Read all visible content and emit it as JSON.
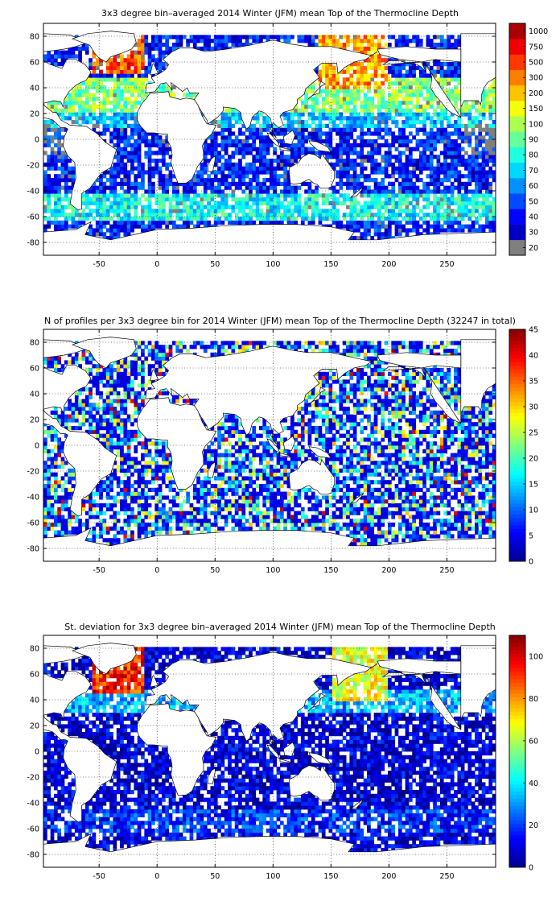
{
  "colors": {
    "land": "#ffffff",
    "coast": "#000000",
    "missing": "#7f7f7f",
    "colormap": [
      "#00008f",
      "#0000ff",
      "#0080ff",
      "#00ffff",
      "#80ff80",
      "#ffff00",
      "#ff8000",
      "#ff0000",
      "#800000"
    ]
  },
  "chart_data": [
    {
      "type": "heatmap",
      "title": "3x3 degree bin–averaged 2014 Winter (JFM) mean Top of the Thermocline Depth",
      "xlim": [
        -98,
        292
      ],
      "ylim": [
        -90,
        90
      ],
      "x_ticks": [
        -50,
        0,
        50,
        100,
        150,
        200,
        250
      ],
      "x_tick_labels": [
        "-50",
        "0",
        "50",
        "100",
        "150",
        "200",
        "250"
      ],
      "y_ticks": [
        80,
        60,
        40,
        20,
        0,
        -20,
        -40,
        -60,
        -80
      ],
      "y_tick_labels": [
        "80",
        "60",
        "40",
        "20",
        "0",
        "-20",
        "-40",
        "-60",
        "-80"
      ],
      "grid": true,
      "colorbar": {
        "scale": "categorical",
        "labels": [
          "20",
          "30",
          "40",
          "50",
          "60",
          "70",
          "80",
          "90",
          "100",
          "150",
          "200",
          "300",
          "500",
          "750",
          "1000"
        ],
        "first_category_color": "missing"
      }
    },
    {
      "type": "heatmap",
      "title": "N of profiles per 3x3 degree bin for 2014 Winter (JFM) mean Top of the Thermocline Depth  (32247 in total)",
      "xlim": [
        -98,
        292
      ],
      "ylim": [
        -90,
        90
      ],
      "x_ticks": [
        -50,
        0,
        50,
        100,
        150,
        200,
        250
      ],
      "x_tick_labels": [
        "-50",
        "0",
        "50",
        "100",
        "150",
        "200",
        "250"
      ],
      "y_ticks": [
        80,
        60,
        40,
        20,
        0,
        -20,
        -40,
        -60,
        -80
      ],
      "y_tick_labels": [
        "80",
        "60",
        "40",
        "20",
        "0",
        "-20",
        "-40",
        "-60",
        "-80"
      ],
      "grid": true,
      "colorbar": {
        "scale": "linear",
        "range": [
          0,
          45
        ],
        "ticks": [
          0,
          5,
          10,
          15,
          20,
          25,
          30,
          35,
          40,
          45
        ],
        "labels": [
          "0",
          "5",
          "10",
          "15",
          "20",
          "25",
          "30",
          "35",
          "40",
          "45"
        ]
      }
    },
    {
      "type": "heatmap",
      "title": "St. deviation for 3x3 degree bin–averaged 2014 Winter (JFM) mean Top of the Thermocline Depth",
      "xlim": [
        -98,
        292
      ],
      "ylim": [
        -90,
        90
      ],
      "x_ticks": [
        -50,
        0,
        50,
        100,
        150,
        200,
        250
      ],
      "x_tick_labels": [
        "-50",
        "0",
        "50",
        "100",
        "150",
        "200",
        "250"
      ],
      "y_ticks": [
        80,
        60,
        40,
        20,
        0,
        -20,
        -40,
        -60,
        -80
      ],
      "y_tick_labels": [
        "80",
        "60",
        "40",
        "20",
        "0",
        "-20",
        "-40",
        "-60",
        "-80"
      ],
      "grid": true,
      "colorbar": {
        "scale": "linear",
        "range": [
          0,
          110
        ],
        "ticks": [
          0,
          20,
          40,
          60,
          80,
          100
        ],
        "labels": [
          "0",
          "20",
          "40",
          "60",
          "80",
          "100"
        ]
      }
    }
  ]
}
